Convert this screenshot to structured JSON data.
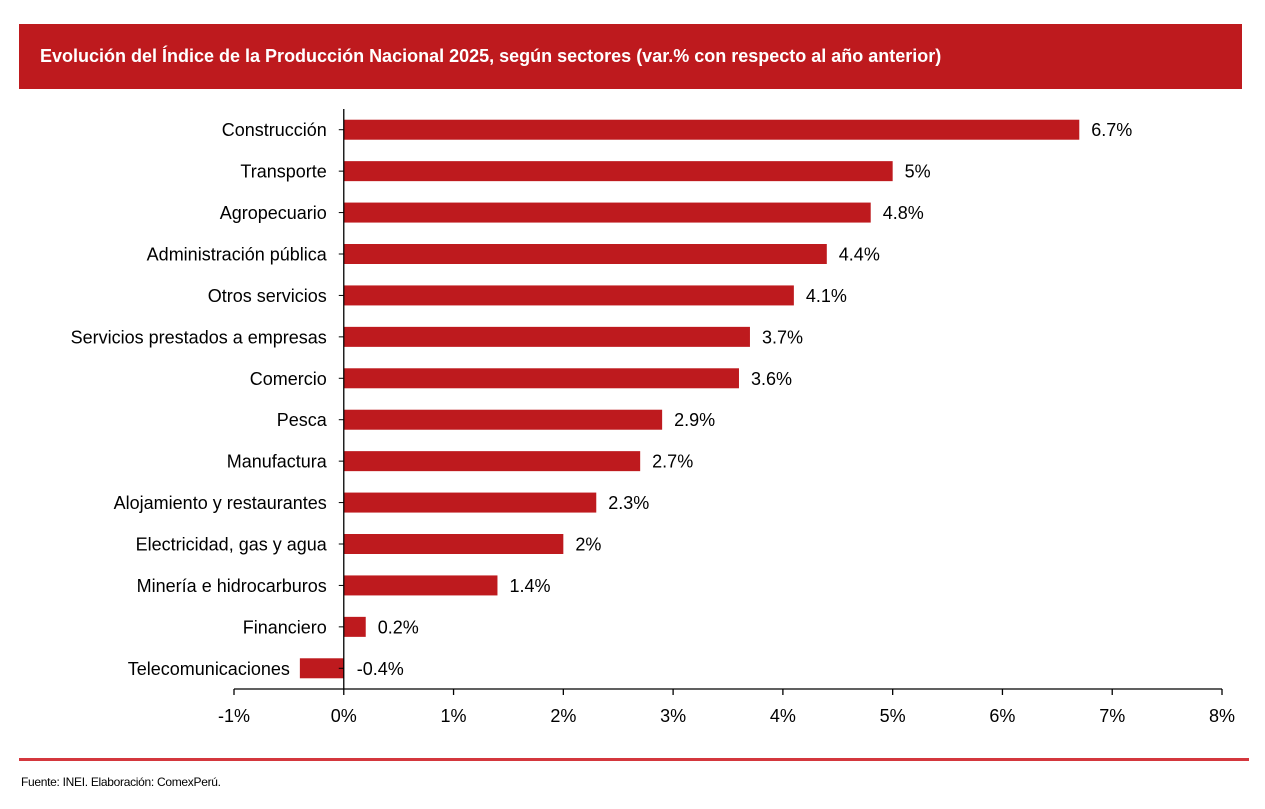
{
  "header": {
    "title": "Evolución del Índice de la Producción Nacional 2025, según sectores (var.% con respecto al año anterior)"
  },
  "footer": {
    "source": "Fuente: INEI. Elaboración: ComexPerú."
  },
  "colors": {
    "bar": "#be1a1e",
    "header_bg": "#be1a1e",
    "footer_line": "#d4373d",
    "axis": "#000000"
  },
  "chart_data": {
    "type": "bar",
    "orientation": "horizontal",
    "title": "Evolución del Índice de la Producción Nacional 2025, según sectores (var.% con respecto al año anterior)",
    "xlabel": "",
    "ylabel": "",
    "xlim": [
      -1,
      8
    ],
    "x_ticks": [
      -1,
      0,
      1,
      2,
      3,
      4,
      5,
      6,
      7,
      8
    ],
    "x_tick_labels": [
      "-1%",
      "0%",
      "1%",
      "2%",
      "3%",
      "4%",
      "5%",
      "6%",
      "7%",
      "8%"
    ],
    "grid": false,
    "legend": "none",
    "categories": [
      "Construcción",
      "Transporte",
      "Agropecuario",
      "Administración pública",
      "Otros servicios",
      "Servicios prestados a empresas",
      "Comercio",
      "Pesca",
      "Manufactura",
      "Alojamiento y restaurantes",
      "Electricidad, gas y agua",
      "Minería e hidrocarburos",
      "Financiero",
      "Telecomunicaciones"
    ],
    "values": [
      6.7,
      5,
      4.8,
      4.4,
      4.1,
      3.7,
      3.6,
      2.9,
      2.7,
      2.3,
      2,
      1.4,
      0.2,
      -0.4
    ],
    "data_labels": [
      "6.7%",
      "5%",
      "4.8%",
      "4.4%",
      "4.1%",
      "3.7%",
      "3.6%",
      "2.9%",
      "2.7%",
      "2.3%",
      "2%",
      "1.4%",
      "0.2%",
      "-0.4%"
    ]
  }
}
